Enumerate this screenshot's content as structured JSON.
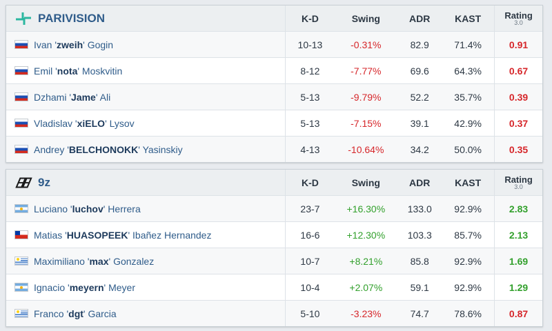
{
  "columns": {
    "kd": "K-D",
    "swing": "Swing",
    "adr": "ADR",
    "kast": "KAST",
    "rating": "Rating",
    "rating_version": "3.0"
  },
  "teams": [
    {
      "name": "PARIVISION",
      "logo": "parivision-logo-icon",
      "accent": "#2bb7a0",
      "players": [
        {
          "first": "Ivan",
          "nick": "zweih",
          "last": "Gogin",
          "flag": "russia-flag-icon",
          "kd": "10-13",
          "swing": "-0.31%",
          "swing_sign": "neg",
          "adr": "82.9",
          "kast": "71.4%",
          "rating": "0.91",
          "rating_sign": "neg"
        },
        {
          "first": "Emil",
          "nick": "nota",
          "last": "Moskvitin",
          "flag": "russia-flag-icon",
          "kd": "8-12",
          "swing": "-7.77%",
          "swing_sign": "neg",
          "adr": "69.6",
          "kast": "64.3%",
          "rating": "0.67",
          "rating_sign": "neg"
        },
        {
          "first": "Dzhami",
          "nick": "Jame",
          "last": "Ali",
          "flag": "russia-flag-icon",
          "kd": "5-13",
          "swing": "-9.79%",
          "swing_sign": "neg",
          "adr": "52.2",
          "kast": "35.7%",
          "rating": "0.39",
          "rating_sign": "neg"
        },
        {
          "first": "Vladislav",
          "nick": "xiELO",
          "last": "Lysov",
          "flag": "russia-flag-icon",
          "kd": "5-13",
          "swing": "-7.15%",
          "swing_sign": "neg",
          "adr": "39.1",
          "kast": "42.9%",
          "rating": "0.37",
          "rating_sign": "neg"
        },
        {
          "first": "Andrey",
          "nick": "BELCHONOKK",
          "last": "Yasinskiy",
          "flag": "russia-flag-icon",
          "kd": "4-13",
          "swing": "-10.64%",
          "swing_sign": "neg",
          "adr": "34.2",
          "kast": "50.0%",
          "rating": "0.35",
          "rating_sign": "neg"
        }
      ]
    },
    {
      "name": "9z",
      "logo": "9z-logo-icon",
      "accent": "#1a1a1a",
      "players": [
        {
          "first": "Luciano",
          "nick": "luchov",
          "last": "Herrera",
          "flag": "argentina-flag-icon",
          "kd": "23-7",
          "swing": "+16.30%",
          "swing_sign": "pos",
          "adr": "133.0",
          "kast": "92.9%",
          "rating": "2.83",
          "rating_sign": "pos"
        },
        {
          "first": "Matias",
          "nick": "HUASOPEEK",
          "last": "Ibañez Hernandez",
          "flag": "chile-flag-icon",
          "kd": "16-6",
          "swing": "+12.30%",
          "swing_sign": "pos",
          "adr": "103.3",
          "kast": "85.7%",
          "rating": "2.13",
          "rating_sign": "pos"
        },
        {
          "first": "Maximiliano",
          "nick": "max",
          "last": "Gonzalez",
          "flag": "uruguay-flag-icon",
          "kd": "10-7",
          "swing": "+8.21%",
          "swing_sign": "pos",
          "adr": "85.8",
          "kast": "92.9%",
          "rating": "1.69",
          "rating_sign": "pos"
        },
        {
          "first": "Ignacio",
          "nick": "meyern",
          "last": "Meyer",
          "flag": "argentina-flag-icon",
          "kd": "10-4",
          "swing": "+2.07%",
          "swing_sign": "pos",
          "adr": "59.1",
          "kast": "92.9%",
          "rating": "1.29",
          "rating_sign": "pos"
        },
        {
          "first": "Franco",
          "nick": "dgt",
          "last": "Garcia",
          "flag": "uruguay-flag-icon",
          "kd": "5-10",
          "swing": "-3.23%",
          "swing_sign": "neg",
          "adr": "74.7",
          "kast": "78.6%",
          "rating": "0.87",
          "rating_sign": "neg"
        }
      ]
    }
  ]
}
